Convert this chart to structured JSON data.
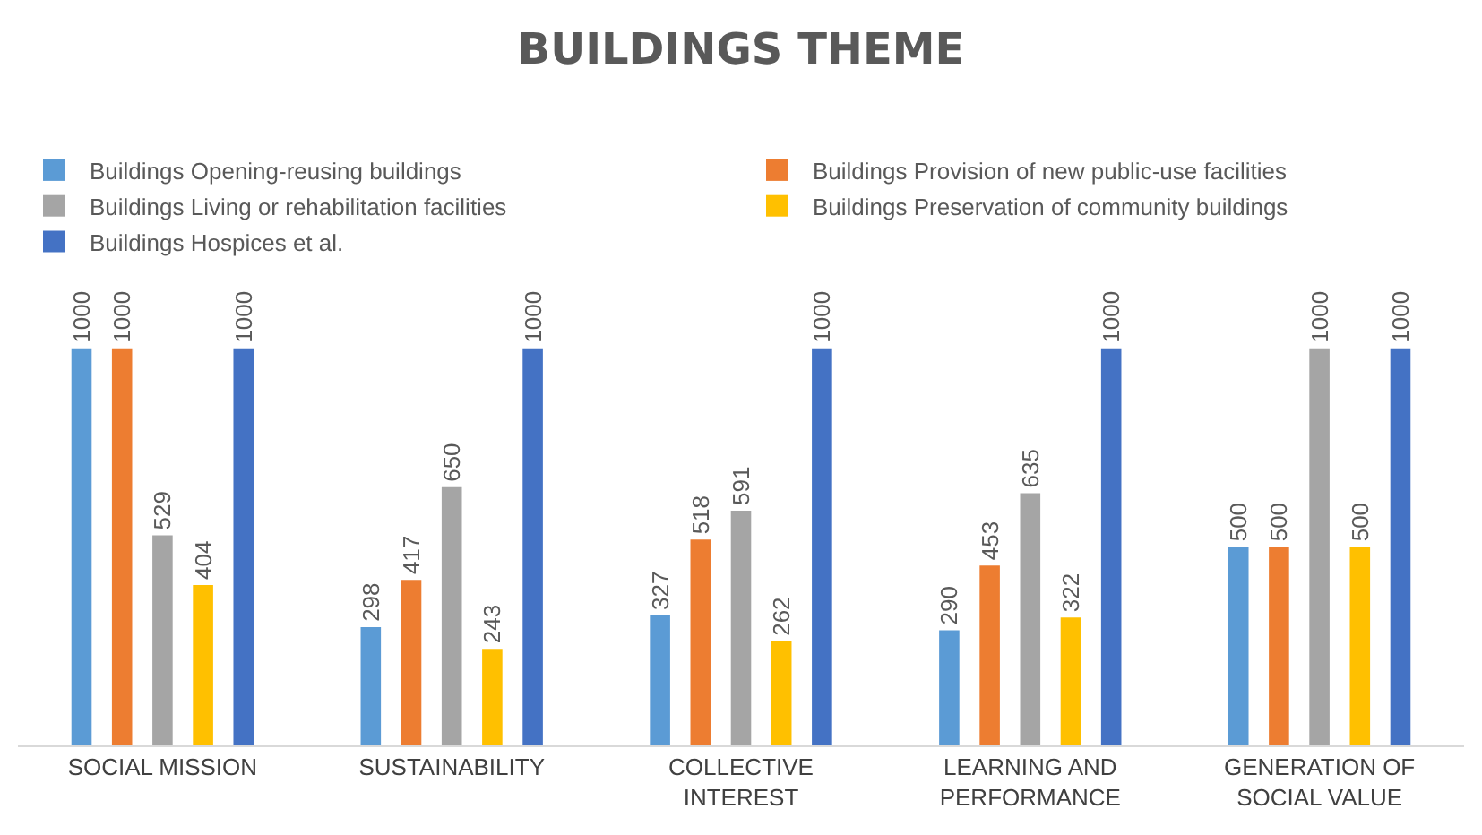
{
  "chart_data": {
    "type": "bar",
    "title": "BUILDINGS THEME",
    "categories": [
      "SOCIAL MISSION",
      "SUSTAINABILITY",
      "COLLECTIVE INTEREST",
      "LEARNING AND PERFORMANCE",
      "GENERATION OF SOCIAL VALUE"
    ],
    "series": [
      {
        "name": "Buildings Opening-reusing buildings",
        "color": "#5b9bd5",
        "values": [
          1000,
          298,
          327,
          290,
          500
        ]
      },
      {
        "name": "Buildings Provision of new public-use facilities",
        "color": "#ed7d31",
        "values": [
          1000,
          417,
          518,
          453,
          500
        ]
      },
      {
        "name": "Buildings Living or rehabilitation facilities",
        "color": "#a5a5a5",
        "values": [
          529,
          650,
          591,
          635,
          1000
        ]
      },
      {
        "name": "Buildings Preservation of community buildings",
        "color": "#ffc000",
        "values": [
          404,
          243,
          262,
          322,
          500
        ]
      },
      {
        "name": "Buildings Hospices et al.",
        "color": "#4472c4",
        "values": [
          1000,
          1000,
          1000,
          1000,
          1000
        ]
      }
    ],
    "data_labels": true,
    "legend": "top",
    "grid": false
  }
}
